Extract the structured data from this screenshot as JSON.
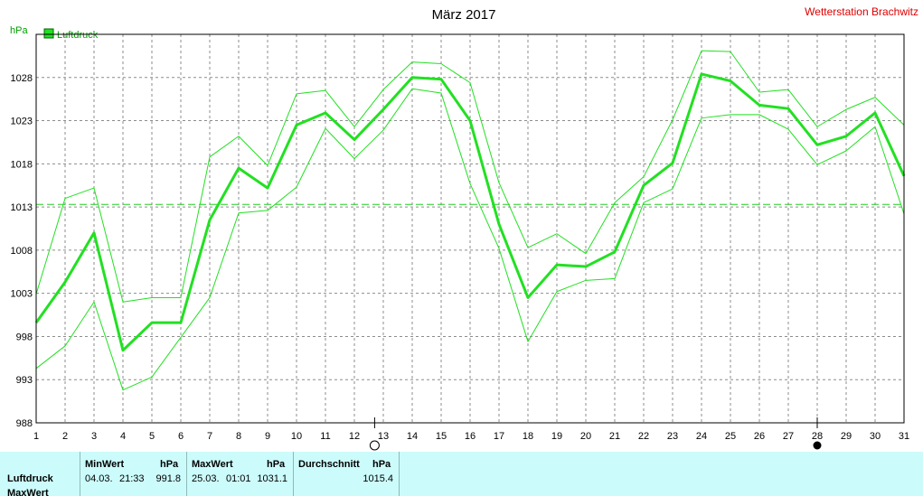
{
  "header": {
    "title": "März 2017",
    "station": "Wetterstation Brachwitz"
  },
  "chart_data": {
    "type": "line",
    "ylabel": "hPa",
    "ylim": [
      988,
      1033
    ],
    "yticks": [
      988,
      993,
      998,
      1003,
      1008,
      1013,
      1018,
      1023,
      1028
    ],
    "x": [
      1,
      2,
      3,
      4,
      5,
      6,
      7,
      8,
      9,
      10,
      11,
      12,
      13,
      14,
      15,
      16,
      17,
      18,
      19,
      20,
      21,
      22,
      23,
      24,
      25,
      26,
      27,
      28,
      29,
      30,
      31
    ],
    "xlim": [
      1,
      31
    ],
    "grid": true,
    "legend": "top-left",
    "average_line": 1013.3,
    "moon_markers": [
      {
        "day": 12.7,
        "phase": "full-moon"
      },
      {
        "day": 28.0,
        "phase": "new-moon"
      }
    ],
    "series": [
      {
        "name": "Luftdruck",
        "role": "mean",
        "color": "#22e022",
        "values": [
          999.6,
          1004.3,
          1010.0,
          996.4,
          999.6,
          999.6,
          1011.5,
          1017.5,
          1015.2,
          1022.5,
          1023.9,
          1020.8,
          1024.3,
          1028.0,
          1027.8,
          1023.0,
          1011.0,
          1002.5,
          1006.3,
          1006.1,
          1007.8,
          1015.5,
          1018.1,
          1028.4,
          1027.6,
          1024.8,
          1024.4,
          1020.2,
          1021.2,
          1023.9,
          1016.6
        ]
      },
      {
        "name": "",
        "role": "max",
        "color": "#22e022",
        "values": [
          1002.9,
          1014.0,
          1015.2,
          1002.0,
          1002.5,
          1002.5,
          1018.8,
          1021.2,
          1017.8,
          1026.1,
          1026.5,
          1022.3,
          1026.6,
          1029.8,
          1029.6,
          1027.4,
          1015.8,
          1008.3,
          1009.9,
          1007.6,
          1013.5,
          1016.5,
          1023.1,
          1031.1,
          1031.0,
          1026.3,
          1026.6,
          1022.3,
          1024.3,
          1025.7,
          1022.5
        ]
      },
      {
        "name": "",
        "role": "min",
        "color": "#22e022",
        "values": [
          994.3,
          996.9,
          1002.0,
          991.8,
          993.3,
          997.9,
          1002.5,
          1012.3,
          1012.6,
          1015.3,
          1022.1,
          1018.6,
          1021.9,
          1026.7,
          1026.2,
          1015.7,
          1008.2,
          997.4,
          1003.2,
          1004.5,
          1004.7,
          1013.5,
          1015.1,
          1023.3,
          1023.7,
          1023.7,
          1022.0,
          1017.9,
          1019.5,
          1022.3,
          1012.2
        ]
      }
    ]
  },
  "footer": {
    "row_label_1": "Luftdruck",
    "row_label_2": "MaxWert",
    "min": {
      "header": "MinWert",
      "unit": "hPa",
      "date": "04.03.",
      "time": "21:33",
      "value": "991.8"
    },
    "max": {
      "header": "MaxWert",
      "unit": "hPa",
      "date": "25.03.",
      "time": "01:01",
      "value": "1031.1"
    },
    "avg": {
      "header": "Durchschnitt",
      "unit": "hPa",
      "value": "1015.4"
    }
  }
}
